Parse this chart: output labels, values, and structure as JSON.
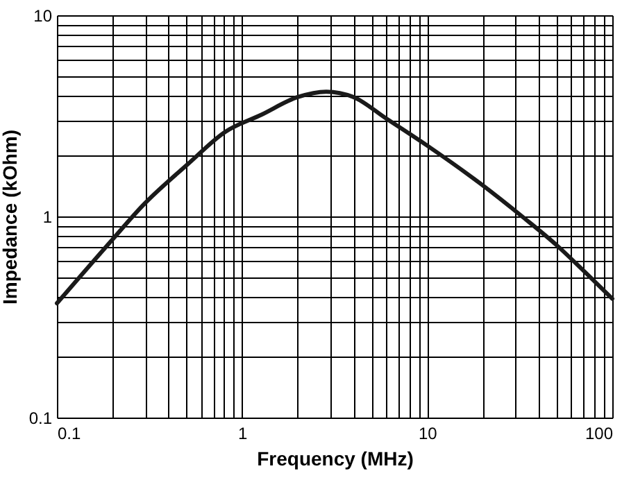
{
  "chart_data": {
    "type": "line",
    "xlabel": "Frequency (MHz)",
    "ylabel": "Impedance (kOhm)",
    "log": "xy",
    "grid": true,
    "marker": "none",
    "line_style": "solid",
    "xlim": [
      0.1,
      100
    ],
    "ylim": [
      0.1,
      10
    ],
    "xticks": [
      0.1,
      {
        "value": 0.2,
        "label": null
      },
      {
        "value": 0.3,
        "label": null
      },
      {
        "value": 0.4,
        "label": null
      },
      {
        "value": 0.5,
        "label": null
      },
      {
        "value": 0.6,
        "label": null
      },
      {
        "value": 0.7,
        "label": null
      },
      {
        "value": 0.8,
        "label": null
      },
      {
        "value": 0.9,
        "label": null
      },
      1,
      {
        "value": 2,
        "label": null
      },
      {
        "value": 3,
        "label": null
      },
      {
        "value": 4,
        "label": null
      },
      {
        "value": 5,
        "label": null
      },
      {
        "value": 6,
        "label": null
      },
      {
        "value": 7,
        "label": null
      },
      {
        "value": 8,
        "label": null
      },
      {
        "value": 9,
        "label": null
      },
      10,
      {
        "value": 20,
        "label": null
      },
      {
        "value": 30,
        "label": null
      },
      {
        "value": 40,
        "label": null
      },
      {
        "value": 50,
        "label": null
      },
      {
        "value": 60,
        "label": null
      },
      {
        "value": 70,
        "label": null
      },
      {
        "value": 80,
        "label": null
      },
      {
        "value": 90,
        "label": null
      },
      100
    ],
    "yticks": [
      0.1,
      {
        "value": 0.2,
        "label": null
      },
      {
        "value": 0.3,
        "label": null
      },
      {
        "value": 0.4,
        "label": null
      },
      {
        "value": 0.5,
        "label": null
      },
      {
        "value": 0.6,
        "label": null
      },
      {
        "value": 0.7,
        "label": null
      },
      {
        "value": 0.8,
        "label": null
      },
      {
        "value": 0.9,
        "label": null
      },
      1,
      {
        "value": 2,
        "label": null
      },
      {
        "value": 3,
        "label": null
      },
      {
        "value": 4,
        "label": null
      },
      {
        "value": 5,
        "label": null
      },
      {
        "value": 6,
        "label": null
      },
      {
        "value": 7,
        "label": null
      },
      {
        "value": 8,
        "label": null
      },
      {
        "value": 9,
        "label": null
      },
      10
    ],
    "x": [
      0.1,
      0.2,
      0.29,
      0.51,
      0.81,
      1.27,
      2.0,
      2.85,
      4.0,
      6.0,
      10,
      19.5,
      33,
      50,
      71,
      100
    ],
    "series": [
      {
        "color": "#1a1a1a",
        "values": [
          0.37,
          0.77,
          1.13,
          1.82,
          2.63,
          3.2,
          3.92,
          4.17,
          3.92,
          3.07,
          2.25,
          1.45,
          0.99,
          0.72,
          0.53,
          0.39
        ]
      }
    ]
  }
}
